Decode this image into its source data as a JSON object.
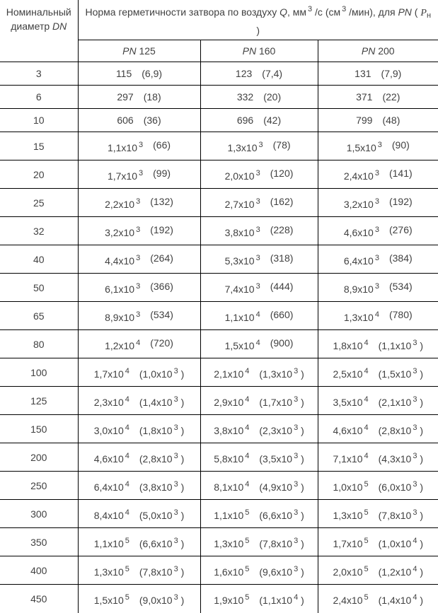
{
  "table": {
    "corner_header": "Номинальный диаметр *DN*",
    "main_header": "Норма герметичности затвора по воздуху *Q*, мм^3^ /с (см^3^ /мин), для *PN* ( $P$~н~ )",
    "col_headers": [
      "*PN* 125",
      "*PN* 160",
      "*PN* 200"
    ],
    "rows": [
      {
        "dn": "3",
        "cells": [
          [
            "115",
            "(6,9)"
          ],
          [
            "123",
            "(7,4)"
          ],
          [
            "131",
            "(7,9)"
          ]
        ]
      },
      {
        "dn": "6",
        "cells": [
          [
            "297",
            "(18)"
          ],
          [
            "332",
            "(20)"
          ],
          [
            "371",
            "(22)"
          ]
        ]
      },
      {
        "dn": "10",
        "cells": [
          [
            "606",
            "(36)"
          ],
          [
            "696",
            "(42)"
          ],
          [
            "799",
            "(48)"
          ]
        ]
      },
      {
        "dn": "15",
        "cells": [
          [
            "1,1x10^3^",
            "(66)"
          ],
          [
            "1,3x10^3^",
            "(78)"
          ],
          [
            "1,5x10^3^",
            "(90)"
          ]
        ]
      },
      {
        "dn": "20",
        "cells": [
          [
            "1,7x10^3^",
            "(99)"
          ],
          [
            "2,0x10^3^",
            "(120)"
          ],
          [
            "2,4x10^3^",
            "(141)"
          ]
        ]
      },
      {
        "dn": "25",
        "cells": [
          [
            "2,2x10^3^",
            "(132)"
          ],
          [
            "2,7x10^3^",
            "(162)"
          ],
          [
            "3,2x10^3^",
            "(192)"
          ]
        ]
      },
      {
        "dn": "32",
        "cells": [
          [
            "3,2x10^3^",
            "(192)"
          ],
          [
            "3,8x10^3^",
            "(228)"
          ],
          [
            "4,6x10^3^",
            "(276)"
          ]
        ]
      },
      {
        "dn": "40",
        "cells": [
          [
            "4,4x10^3^",
            "(264)"
          ],
          [
            "5,3x10^3^",
            "(318)"
          ],
          [
            "6,4x10^3^",
            "(384)"
          ]
        ]
      },
      {
        "dn": "50",
        "cells": [
          [
            "6,1x10^3^",
            "(366)"
          ],
          [
            "7,4x10^3^",
            "(444)"
          ],
          [
            "8,9x10^3^",
            "(534)"
          ]
        ]
      },
      {
        "dn": "65",
        "cells": [
          [
            "8,9x10^3^",
            "(534)"
          ],
          [
            "1,1x10^4^",
            "(660)"
          ],
          [
            "1,3x10^4^",
            "(780)"
          ]
        ]
      },
      {
        "dn": "80",
        "cells": [
          [
            "1,2x10^4^",
            "(720)"
          ],
          [
            "1,5x10^4^",
            "(900)"
          ],
          [
            "1,8x10^4^",
            "(1,1x10^3^ )"
          ]
        ]
      },
      {
        "dn": "100",
        "cells": [
          [
            "1,7x10^4^",
            "(1,0x10^3^ )"
          ],
          [
            "2,1x10^4^",
            "(1,3x10^3^ )"
          ],
          [
            "2,5x10^4^",
            "(1,5x10^3^ )"
          ]
        ]
      },
      {
        "dn": "125",
        "cells": [
          [
            "2,3x10^4^",
            "(1,4x10^3^ )"
          ],
          [
            "2,9x10^4^",
            "(1,7x10^3^ )"
          ],
          [
            "3,5x10^4^",
            "(2,1x10^3^ )"
          ]
        ]
      },
      {
        "dn": "150",
        "cells": [
          [
            "3,0x10^4^",
            "(1,8x10^3^ )"
          ],
          [
            "3,8x10^4^",
            "(2,3x10^3^ )"
          ],
          [
            "4,6x10^4^",
            "(2,8x10^3^ )"
          ]
        ]
      },
      {
        "dn": "200",
        "cells": [
          [
            "4,6x10^4^",
            "(2,8x10^3^ )"
          ],
          [
            "5,8x10^4^",
            "(3,5x10^3^ )"
          ],
          [
            "7,1x10^4^",
            "(4,3x10^3^ )"
          ]
        ]
      },
      {
        "dn": "250",
        "cells": [
          [
            "6,4x10^4^",
            "(3,8x10^3^ )"
          ],
          [
            "8,1x10^4^",
            "(4,9x10^3^ )"
          ],
          [
            "1,0x10^5^",
            "(6,0x10^3^ )"
          ]
        ]
      },
      {
        "dn": "300",
        "cells": [
          [
            "8,4x10^4^",
            "(5,0x10^3^ )"
          ],
          [
            "1,1x10^5^",
            "(6,6x10^3^ )"
          ],
          [
            "1,3x10^5^",
            "(7,8x10^3^ )"
          ]
        ]
      },
      {
        "dn": "350",
        "cells": [
          [
            "1,1x10^5^",
            "(6,6x10^3^ )"
          ],
          [
            "1,3x10^5^",
            "(7,8x10^3^ )"
          ],
          [
            "1,7x10^5^",
            "(1,0x10^4^ )"
          ]
        ]
      },
      {
        "dn": "400",
        "cells": [
          [
            "1,3x10^5^",
            "(7,8x10^3^ )"
          ],
          [
            "1,6x10^5^",
            "(9,6x10^3^ )"
          ],
          [
            "2,0x10^5^",
            "(1,2x10^4^ )"
          ]
        ]
      },
      {
        "dn": "450",
        "cells": [
          [
            "1,5x10^5^",
            "(9,0x10^3^ )"
          ],
          [
            "1,9x10^5^",
            "(1,1x10^4^ )"
          ],
          [
            "2,4x10^5^",
            "(1,4x10^4^ )"
          ]
        ]
      }
    ]
  }
}
